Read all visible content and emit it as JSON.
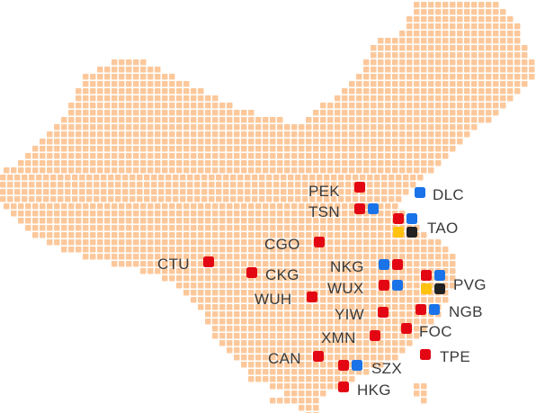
{
  "colors": {
    "land_dot": "#FCC89B",
    "red": "#E30613",
    "blue": "#1A73E8",
    "yellow": "#FFC20E",
    "black": "#222222",
    "label": "#3A3A3A"
  },
  "airports": [
    {
      "code": "PEK",
      "markers": [
        "red"
      ]
    },
    {
      "code": "DLC",
      "markers": [
        "blue"
      ]
    },
    {
      "code": "TSN",
      "markers": [
        "red",
        "blue"
      ]
    },
    {
      "code": "TAO",
      "markers": [
        "red",
        "blue",
        "yellow",
        "black"
      ]
    },
    {
      "code": "CGO",
      "markers": [
        "red"
      ]
    },
    {
      "code": "CTU",
      "markers": [
        "red"
      ]
    },
    {
      "code": "NKG",
      "markers": [
        "blue",
        "red"
      ]
    },
    {
      "code": "CKG",
      "markers": [
        "red"
      ]
    },
    {
      "code": "PVG",
      "markers": [
        "red",
        "blue",
        "yellow",
        "black"
      ]
    },
    {
      "code": "WUX",
      "markers": [
        "red",
        "blue"
      ]
    },
    {
      "code": "WUH",
      "markers": [
        "red"
      ]
    },
    {
      "code": "NGB",
      "markers": [
        "red",
        "blue"
      ]
    },
    {
      "code": "YIW",
      "markers": [
        "red"
      ]
    },
    {
      "code": "FOC",
      "markers": [
        "red"
      ]
    },
    {
      "code": "XMN",
      "markers": [
        "red"
      ]
    },
    {
      "code": "TPE",
      "markers": [
        "red"
      ]
    },
    {
      "code": "CAN",
      "markers": [
        "red"
      ]
    },
    {
      "code": "SZX",
      "markers": [
        "red",
        "blue"
      ]
    },
    {
      "code": "HKG",
      "markers": [
        "red"
      ]
    }
  ]
}
